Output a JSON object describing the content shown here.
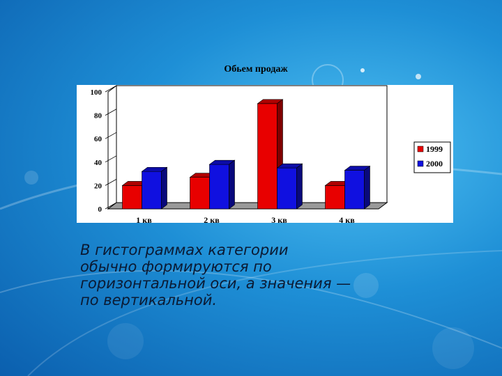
{
  "chart_data": {
    "type": "bar",
    "title": "Обьем продаж",
    "categories": [
      "1 кв",
      "2 кв",
      "3 кв",
      "4 кв"
    ],
    "series": [
      {
        "name": "1999",
        "values": [
          20,
          27,
          90,
          20
        ],
        "color": "#e80000"
      },
      {
        "name": "2000",
        "values": [
          32,
          38,
          35,
          33
        ],
        "color": "#1010e0"
      }
    ],
    "ylim": [
      0,
      100
    ],
    "yticks": [
      "0",
      "20",
      "40",
      "60",
      "80",
      "100"
    ],
    "grid": false,
    "legend_placement": "right",
    "style": "3d"
  },
  "caption": {
    "lines": [
      "В гистограммах категории",
      "обычно формируются по",
      "горизонтальной оси, а значения —",
      "по вертикальной."
    ]
  }
}
